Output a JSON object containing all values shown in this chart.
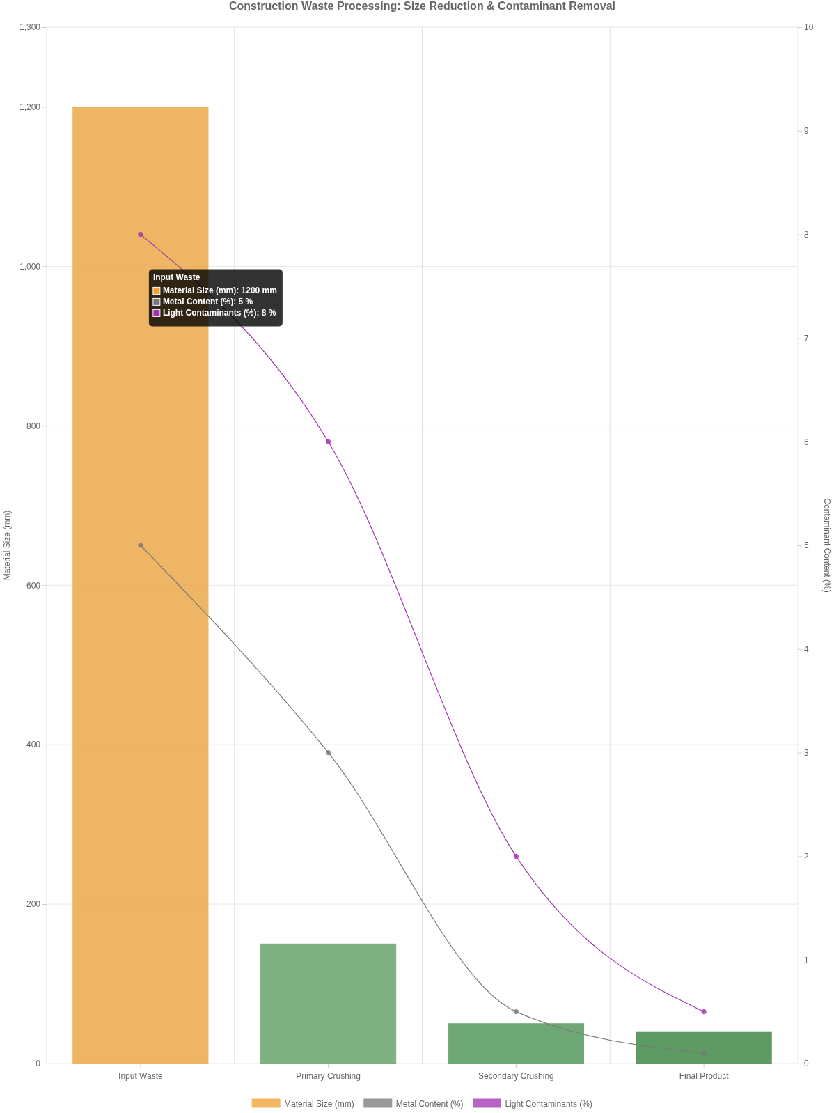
{
  "chart_data": {
    "type": "bar",
    "title": "Construction Waste Processing: Size Reduction & Contaminant Removal",
    "categories": [
      "Input Waste",
      "Primary Crushing",
      "Secondary Crushing",
      "Final Product"
    ],
    "series": [
      {
        "name": "Material Size (mm)",
        "color": "#f0a030",
        "colors": [
          "#eca94b",
          "#6aa46e",
          "#559a5c",
          "#428a47"
        ],
        "values": [
          1200,
          150,
          50,
          40
        ]
      },
      {
        "name": "Metal Content (%)",
        "type": "line",
        "axis": "y2",
        "color": "#777777",
        "values": [
          5,
          3,
          0.5,
          0.1
        ]
      },
      {
        "name": "Light Contaminants (%)",
        "type": "line",
        "axis": "y2",
        "color": "#a030b0",
        "values": [
          8,
          6,
          2,
          0.5
        ]
      }
    ],
    "ylabel": "Material Size (mm)",
    "y2label": "Contaminant Content (%)",
    "ylim": [
      0,
      1300
    ],
    "yticks": [
      0,
      200,
      400,
      600,
      800,
      {
        "value": 1000,
        "label": "1,000"
      },
      {
        "value": 1200,
        "label": "1,200"
      },
      {
        "value": 1300,
        "label": "1,300"
      }
    ],
    "y2lim": [
      0,
      10
    ],
    "y2ticks": [
      0,
      1,
      2,
      3,
      4,
      5,
      6,
      7,
      8,
      9,
      10
    ],
    "grid": true,
    "legend": "bottom",
    "marker": "circle",
    "line_style": "solid",
    "annotations": [
      "Input Waste",
      "Material Size (mm): 1200 mm",
      "Metal Content (%): 5 %",
      "Light Contaminants (%): 8 %"
    ]
  }
}
